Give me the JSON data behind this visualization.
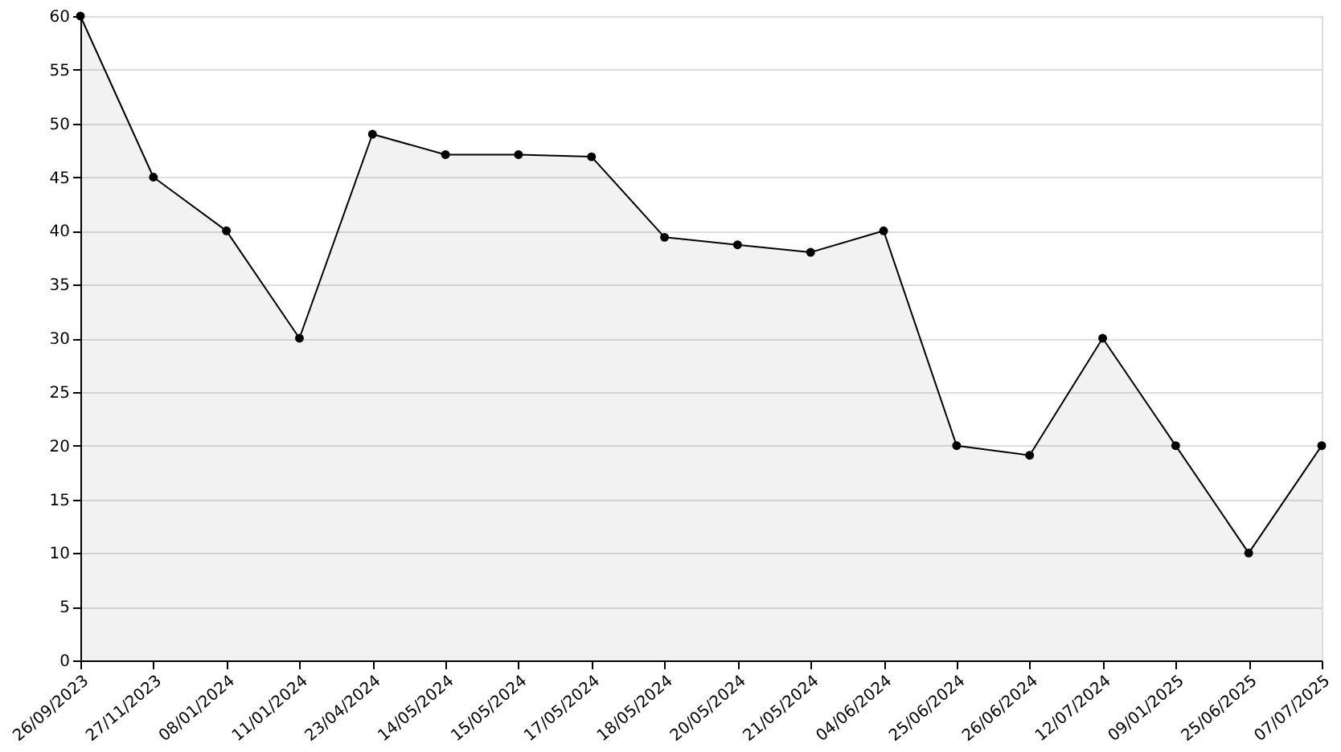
{
  "chart_data": {
    "type": "area",
    "categories": [
      "26/09/2023",
      "27/11/2023",
      "08/01/2024",
      "11/01/2024",
      "23/04/2024",
      "14/05/2024",
      "15/05/2024",
      "17/05/2024",
      "18/05/2024",
      "20/05/2024",
      "21/05/2024",
      "04/06/2024",
      "25/06/2024",
      "26/06/2024",
      "12/07/2024",
      "09/01/2025",
      "25/06/2025",
      "07/07/2025"
    ],
    "series": [
      {
        "color": "#000000",
        "values": [
          60,
          45,
          40,
          30,
          49,
          47.1,
          47.1,
          46.9,
          39.4,
          38.7,
          38.0,
          40,
          20,
          19.1,
          30,
          20,
          10,
          20
        ]
      }
    ],
    "ylim": [
      0,
      60
    ],
    "yticks": [
      0,
      5,
      10,
      15,
      20,
      25,
      30,
      35,
      40,
      45,
      50,
      55,
      60
    ],
    "grid": "y",
    "marker": "circle",
    "line_style": "solid"
  }
}
